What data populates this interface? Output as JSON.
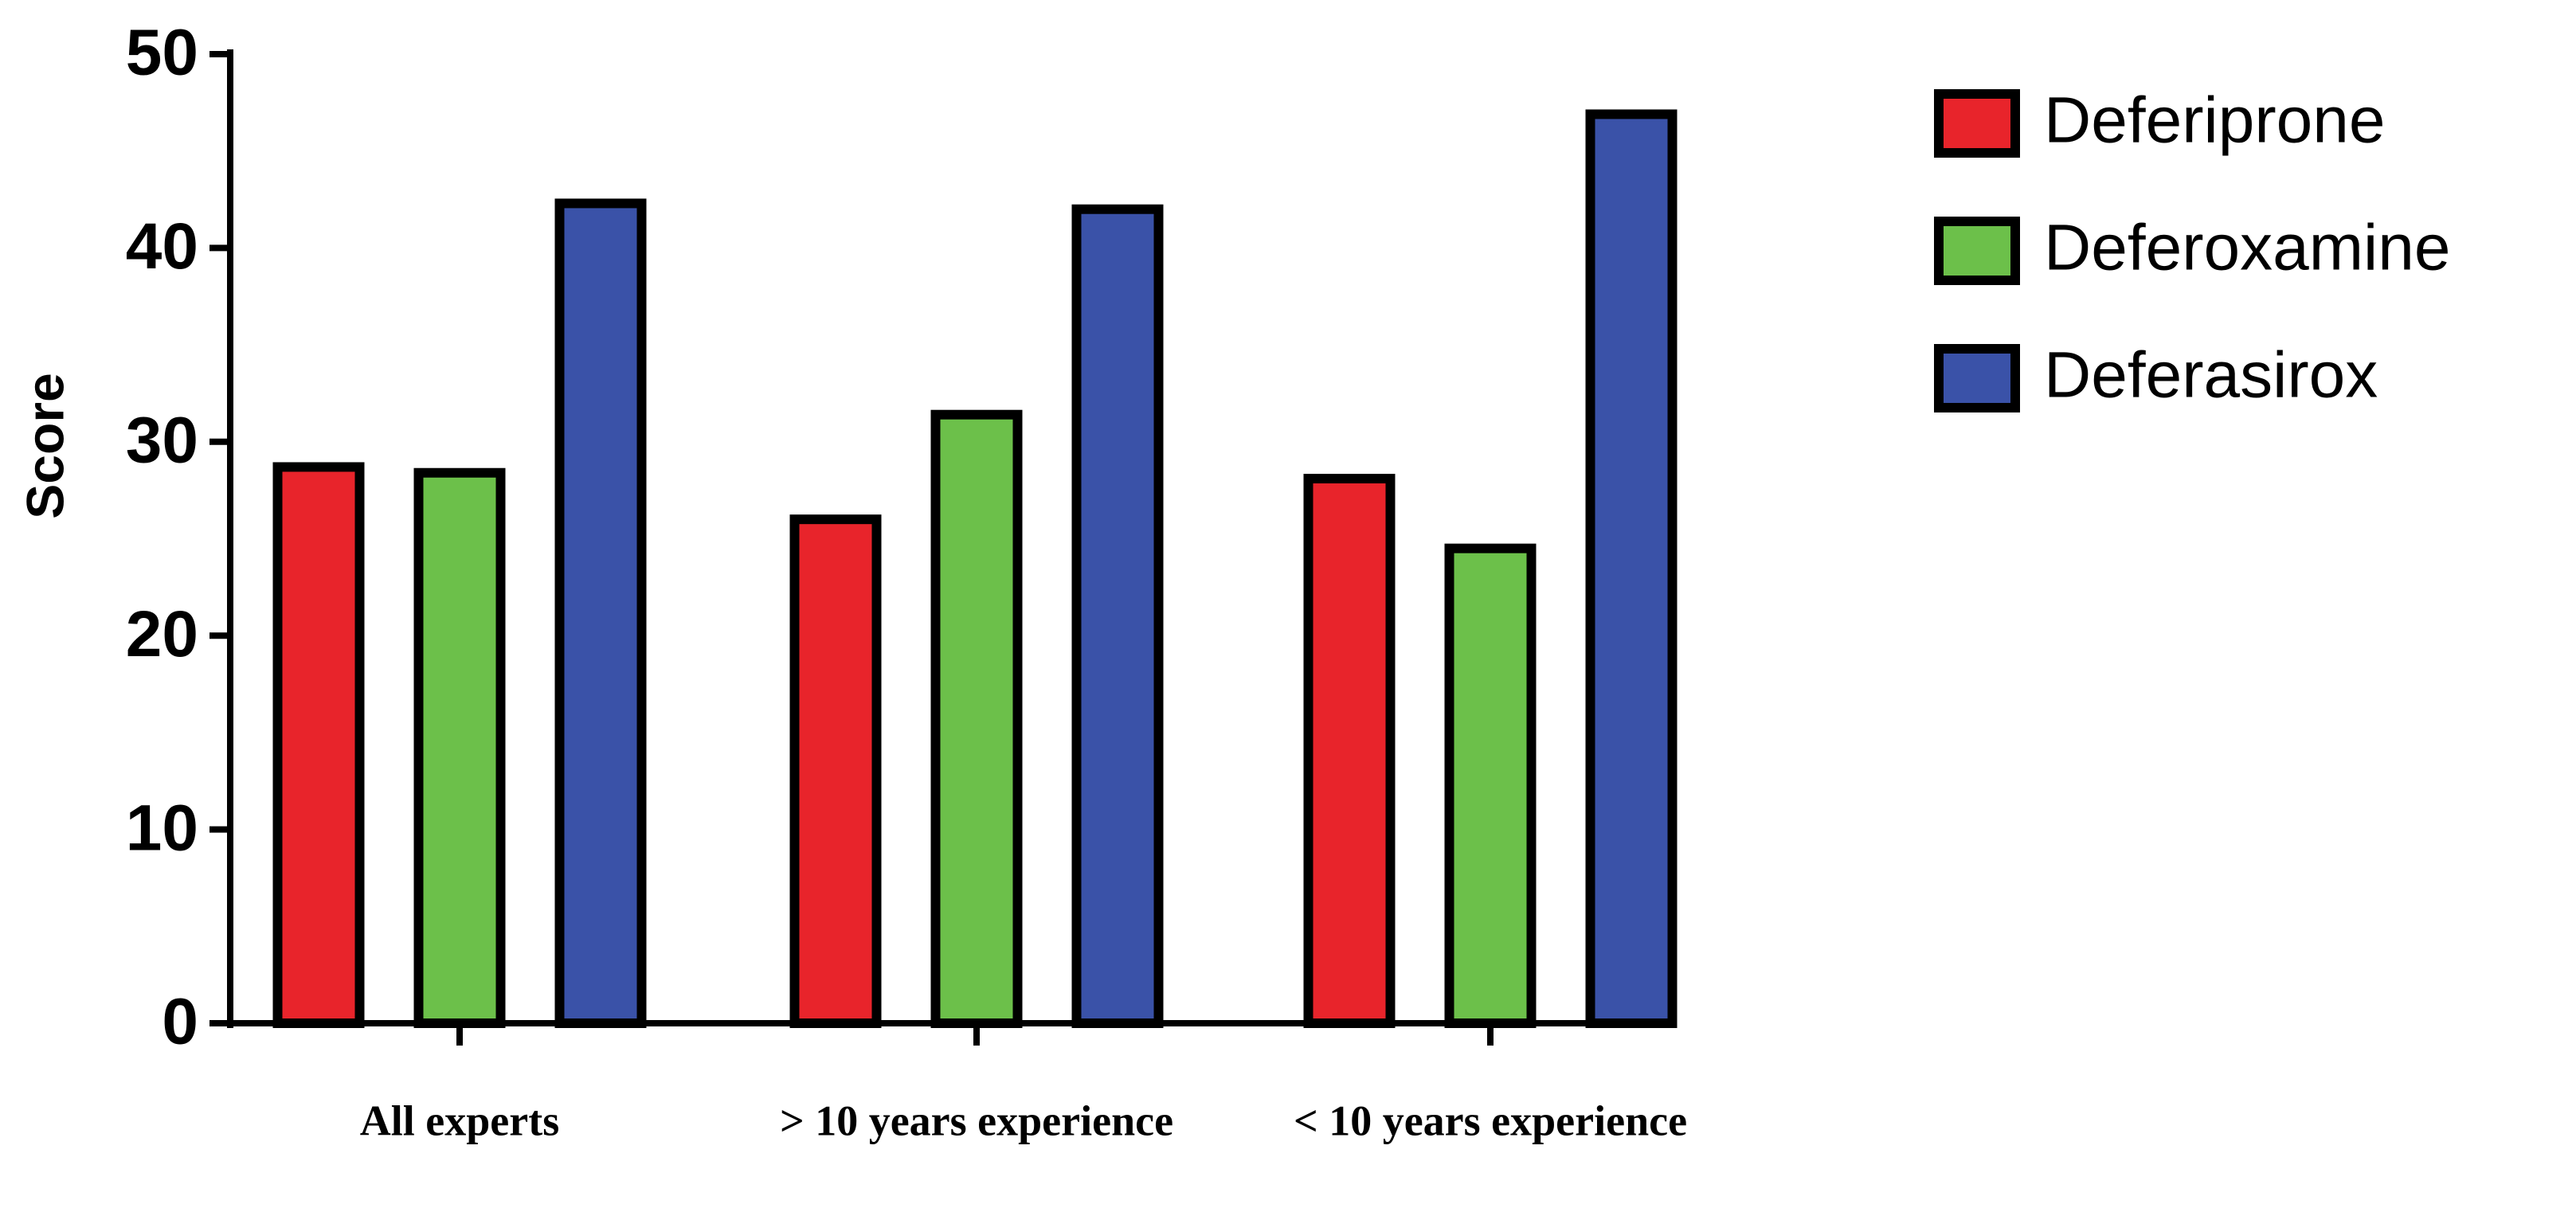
{
  "chart_data": {
    "type": "bar",
    "y_label": "Score",
    "categories": [
      "All experts",
      "> 10 years experience",
      "< 10 years experience"
    ],
    "series": [
      {
        "name": "Deferiprone",
        "color": "#e8242b",
        "values": [
          28.7,
          26.0,
          28.1
        ]
      },
      {
        "name": "Deferoxamine",
        "color": "#6cc04a",
        "values": [
          28.4,
          31.4,
          24.5
        ]
      },
      {
        "name": "Deferasirox",
        "color": "#3a52a8",
        "values": [
          42.3,
          42.0,
          46.9
        ]
      }
    ],
    "ylim": [
      0,
      50
    ],
    "yticks": [
      0,
      10,
      20,
      30,
      40,
      50
    ],
    "grid": false,
    "legend": "right"
  }
}
